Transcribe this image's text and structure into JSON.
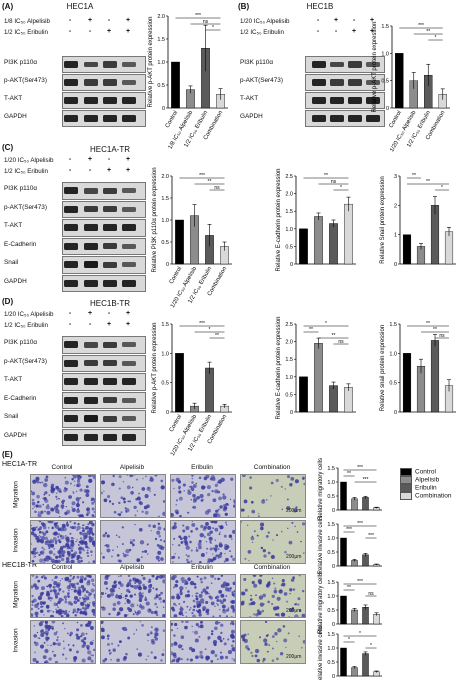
{
  "panels": {
    "A": {
      "label": "(A)",
      "title": "HEC1A",
      "cond_rows": [
        {
          "label": "1/8 IC₅₀ Alpelisib",
          "signs": [
            "-",
            "+",
            "-",
            "+"
          ]
        },
        {
          "label": "1/2 IC₅₀ Eribulin",
          "signs": [
            "-",
            "-",
            "+",
            "+"
          ]
        }
      ],
      "blots": [
        "PI3K p110α",
        "p-AKT(Ser473)",
        "T-AKT",
        "GAPDH"
      ]
    },
    "B": {
      "label": "(B)",
      "title": "HEC1B",
      "cond_rows": [
        {
          "label": "1/20 IC₅₀ Alpelisib",
          "signs": [
            "-",
            "+",
            "-",
            "+"
          ]
        },
        {
          "label": "1/2 IC₅₀ Eribulin",
          "signs": [
            "-",
            "-",
            "+",
            "+"
          ]
        }
      ],
      "blots": [
        "PI3K p110α",
        "p-AKT(Ser473)",
        "T-AKT",
        "GAPDH"
      ]
    },
    "C": {
      "label": "(C)",
      "title": "HEC1A-TR",
      "cond_rows": [
        {
          "label": "1/20 IC₅₀ Alpelisib",
          "signs": [
            "-",
            "+",
            "-",
            "+"
          ]
        },
        {
          "label": "1/2 IC₅₀ Eribulin",
          "signs": [
            "-",
            "-",
            "+",
            "+"
          ]
        }
      ],
      "blots": [
        "PI3K p110α",
        "p-AKT(Ser473)",
        "T-AKT",
        "E-Cadherin",
        "Snail",
        "GAPDH"
      ]
    },
    "D": {
      "label": "(D)",
      "title": "HEC1B-TR",
      "cond_rows": [
        {
          "label": "1/20 IC₅₀ Alpelisib",
          "signs": [
            "-",
            "+",
            "-",
            "+"
          ]
        },
        {
          "label": "1/2 IC₅₀ Eribulin",
          "signs": [
            "-",
            "-",
            "+",
            "+"
          ]
        }
      ],
      "blots": [
        "PI3K p110α",
        "p-AKT(Ser473)",
        "T-AKT",
        "E-Cadherin",
        "Snail",
        "GAPDH"
      ]
    },
    "E": {
      "label": "(E)",
      "cell_a": "HEC1A-TR",
      "cell_b": "HEC1B-TR",
      "columns": [
        "Control",
        "Alpelisib",
        "Eribulin",
        "Combination"
      ],
      "rows": [
        "Migration",
        "Invasion"
      ],
      "scale": "200μm",
      "legend": [
        "Control",
        "Alpelisib",
        "Eribulin",
        "Combination"
      ]
    }
  },
  "colors": {
    "control": "#000000",
    "alpelisib": "#8c8c8c",
    "eribulin": "#5a5a5a",
    "combination": "#d9d9d9",
    "crystal": "#3b3c9e",
    "bg": "#c9c9d6"
  },
  "chart_data": [
    {
      "id": "A1",
      "type": "bar",
      "ylabel": "Relative p-AKT protein expression",
      "ylim": [
        0,
        2.0
      ],
      "yticks": [
        "0",
        "0.5",
        "1.0",
        "1.5",
        "2.0"
      ],
      "categories": [
        "Control",
        "1/8 IC50 Alpelisib",
        "1/2 IC50 Eribulin",
        "Combination"
      ],
      "xlabels": [
        "Control",
        "1/8 IC₅₀ Alpelisib",
        "1/2 IC₅₀ Eribulin",
        "Combination"
      ],
      "values": [
        1.0,
        0.4,
        1.3,
        0.3
      ],
      "errors": [
        0,
        0.08,
        0.5,
        0.12
      ],
      "sig": [
        {
          "a": 0,
          "b": 3,
          "t": "***"
        },
        {
          "a": 1,
          "b": 3,
          "t": "ns"
        },
        {
          "a": 2,
          "b": 3,
          "t": "*"
        }
      ]
    },
    {
      "id": "B1",
      "type": "bar",
      "ylabel": "Relative p-AKT protein expression",
      "ylim": [
        0,
        1.5
      ],
      "yticks": [
        "0",
        "0.5",
        "1.0",
        "1.5"
      ],
      "categories": [
        "Control",
        "1/20 IC50 Alpelisib",
        "1/2 IC50 Eribulin",
        "Combination"
      ],
      "xlabels": [
        "Control",
        "1/20 IC₅₀ Alpelisib",
        "1/2 IC₅₀ Eribulin",
        "Combination"
      ],
      "values": [
        1.0,
        0.5,
        0.6,
        0.25
      ],
      "errors": [
        0,
        0.15,
        0.2,
        0.1
      ],
      "sig": [
        {
          "a": 0,
          "b": 3,
          "t": "***"
        },
        {
          "a": 1,
          "b": 3,
          "t": "**"
        },
        {
          "a": 2,
          "b": 3,
          "t": "*"
        }
      ]
    },
    {
      "id": "C1",
      "type": "bar",
      "ylabel": "Relative PI3K p110α protein expression",
      "ylim": [
        0,
        2.0
      ],
      "yticks": [
        "0",
        "0.5",
        "1.0",
        "1.5",
        "2.0"
      ],
      "categories": [
        "Control",
        "1/20 IC50 Alpelisib",
        "1/2 IC50 Eribulin",
        "Combination"
      ],
      "xlabels": [
        "Control",
        "1/20 IC₅₀ Alpelisib",
        "1/2 IC₅₀ Eribulin",
        "Combination"
      ],
      "values": [
        1.0,
        1.1,
        0.65,
        0.4
      ],
      "errors": [
        0,
        0.25,
        0.25,
        0.1
      ],
      "sig": [
        {
          "a": 0,
          "b": 3,
          "t": "***"
        },
        {
          "a": 1,
          "b": 3,
          "t": "**"
        },
        {
          "a": 2,
          "b": 3,
          "t": "ns"
        }
      ]
    },
    {
      "id": "C2",
      "type": "bar",
      "ylabel": "Relative E-cadherin protein expression",
      "ylim": [
        0,
        2.5
      ],
      "yticks": [
        "0",
        "0.5",
        "1.0",
        "1.5",
        "2.0",
        "2.5"
      ],
      "categories": [
        "Control",
        "1/20 IC50 Alpelisib",
        "1/2 IC50 Eribulin",
        "Combination"
      ],
      "values": [
        1.0,
        1.35,
        1.15,
        1.7
      ],
      "errors": [
        0,
        0.1,
        0.1,
        0.2
      ],
      "sig": [
        {
          "a": 0,
          "b": 3,
          "t": "**"
        },
        {
          "a": 1,
          "b": 3,
          "t": "ns"
        },
        {
          "a": 2,
          "b": 3,
          "t": "*"
        }
      ]
    },
    {
      "id": "C3",
      "type": "bar",
      "ylabel": "Relative Snail protein expression",
      "ylim": [
        0,
        3.0
      ],
      "yticks": [
        "0",
        "1",
        "2",
        "3"
      ],
      "categories": [
        "Control",
        "1/20 IC50 Alpelisib",
        "1/2 IC50 Eribulin",
        "Combination"
      ],
      "values": [
        1.0,
        0.6,
        2.0,
        1.1
      ],
      "errors": [
        0,
        0.1,
        0.3,
        0.15
      ],
      "sig": [
        {
          "a": 0,
          "b": 1,
          "t": "**"
        },
        {
          "a": 0,
          "b": 3,
          "t": "**"
        },
        {
          "a": 2,
          "b": 3,
          "t": "*"
        }
      ]
    },
    {
      "id": "D1",
      "type": "bar",
      "ylabel": "Relative p-AKT protein expression",
      "ylim": [
        0,
        1.5
      ],
      "yticks": [
        "0",
        "0.5",
        "1.0",
        "1.5"
      ],
      "categories": [
        "Control",
        "1/20 IC50 Alpelisib",
        "1/2 IC50 Eribulin",
        "Combination"
      ],
      "xlabels": [
        "Control",
        "1/20 IC₅₀ Alpelisib",
        "1/2 IC₅₀ Eribulin",
        "Combination"
      ],
      "values": [
        1.0,
        0.1,
        0.75,
        0.1
      ],
      "errors": [
        0,
        0.05,
        0.1,
        0.03
      ],
      "sig": [
        {
          "a": 0,
          "b": 3,
          "t": "***"
        },
        {
          "a": 1,
          "b": 3,
          "t": "*"
        },
        {
          "a": 2,
          "b": 3,
          "t": "**"
        }
      ]
    },
    {
      "id": "D2",
      "type": "bar",
      "ylabel": "Relative E-cadherin protein expression",
      "ylim": [
        0,
        2.5
      ],
      "yticks": [
        "0",
        "0.5",
        "1.0",
        "1.5",
        "2.0",
        "2.5"
      ],
      "categories": [
        "Control",
        "1/20 IC50 Alpelisib",
        "1/2 IC50 Eribulin",
        "Combination"
      ],
      "values": [
        1.0,
        1.95,
        0.75,
        0.7
      ],
      "errors": [
        0,
        0.15,
        0.1,
        0.1
      ],
      "sig": [
        {
          "a": 0,
          "b": 3,
          "t": "*"
        },
        {
          "a": 0,
          "b": 1,
          "t": "**"
        },
        {
          "a": 1,
          "b": 3,
          "t": "**"
        },
        {
          "a": 2,
          "b": 3,
          "t": "ns"
        }
      ]
    },
    {
      "id": "D3",
      "type": "bar",
      "ylabel": "Relative snail protein expression",
      "ylim": [
        0,
        1.5
      ],
      "yticks": [
        "0",
        "0.5",
        "1.0",
        "1.5"
      ],
      "categories": [
        "Control",
        "1/20 IC50 Alpelisib",
        "1/2 IC50 Eribulin",
        "Combination"
      ],
      "values": [
        1.0,
        0.78,
        1.22,
        0.45
      ],
      "errors": [
        0,
        0.12,
        0.1,
        0.1
      ],
      "sig": [
        {
          "a": 0,
          "b": 3,
          "t": "**"
        },
        {
          "a": 1,
          "b": 3,
          "t": "**"
        },
        {
          "a": 2,
          "b": 3,
          "t": "ns"
        }
      ]
    },
    {
      "id": "E1",
      "type": "bar",
      "ylabel": "Relative migratory cells",
      "ylim": [
        0,
        1.5
      ],
      "yticks": [
        "0",
        "0.5",
        "1.0",
        "1.5"
      ],
      "categories": [
        "Control",
        "Alpelisib",
        "Eribulin",
        "Combination"
      ],
      "values": [
        1.0,
        0.4,
        0.45,
        0.08
      ],
      "errors": [
        0,
        0.05,
        0.04,
        0.02
      ],
      "sig": [
        {
          "a": 0,
          "b": 3,
          "t": "***"
        },
        {
          "a": 0,
          "b": 1,
          "t": "**"
        },
        {
          "a": 1,
          "b": 3,
          "t": "***"
        }
      ]
    },
    {
      "id": "E2",
      "type": "bar",
      "ylabel": "Relative invasive cells",
      "ylim": [
        0,
        1.5
      ],
      "yticks": [
        "0",
        "0.5",
        "1.0",
        "1.5"
      ],
      "categories": [
        "Control",
        "Alpelisib",
        "Eribulin",
        "Combination"
      ],
      "values": [
        1.0,
        0.2,
        0.4,
        0.05
      ],
      "errors": [
        0,
        0.04,
        0.05,
        0.02
      ],
      "sig": [
        {
          "a": 0,
          "b": 3,
          "t": "***"
        },
        {
          "a": 0,
          "b": 1,
          "t": "***"
        },
        {
          "a": 2,
          "b": 3,
          "t": "***"
        }
      ]
    },
    {
      "id": "E3",
      "type": "bar",
      "ylabel": "Relative migratory cells",
      "ylim": [
        0,
        1.5
      ],
      "yticks": [
        "0",
        "0.5",
        "1.0",
        "1.5"
      ],
      "categories": [
        "Control",
        "Alpelisib",
        "Eribulin",
        "Combination"
      ],
      "values": [
        1.0,
        0.5,
        0.6,
        0.35
      ],
      "errors": [
        0,
        0.06,
        0.08,
        0.05
      ],
      "sig": [
        {
          "a": 0,
          "b": 3,
          "t": "***"
        },
        {
          "a": 0,
          "b": 1,
          "t": "**"
        },
        {
          "a": 2,
          "b": 3,
          "t": "ns"
        }
      ]
    },
    {
      "id": "E4",
      "type": "bar",
      "ylabel": "Relative invasive cells",
      "ylim": [
        0,
        1.5
      ],
      "yticks": [
        "0",
        "0.5",
        "1.0",
        "1.5"
      ],
      "categories": [
        "Control",
        "Alpelisib",
        "Eribulin",
        "Combination"
      ],
      "values": [
        1.0,
        0.3,
        0.8,
        0.15
      ],
      "errors": [
        0,
        0.04,
        0.06,
        0.03
      ],
      "sig": [
        {
          "a": 0,
          "b": 3,
          "t": "*"
        },
        {
          "a": 0,
          "b": 1,
          "t": "*"
        },
        {
          "a": 2,
          "b": 3,
          "t": "*"
        }
      ]
    }
  ]
}
